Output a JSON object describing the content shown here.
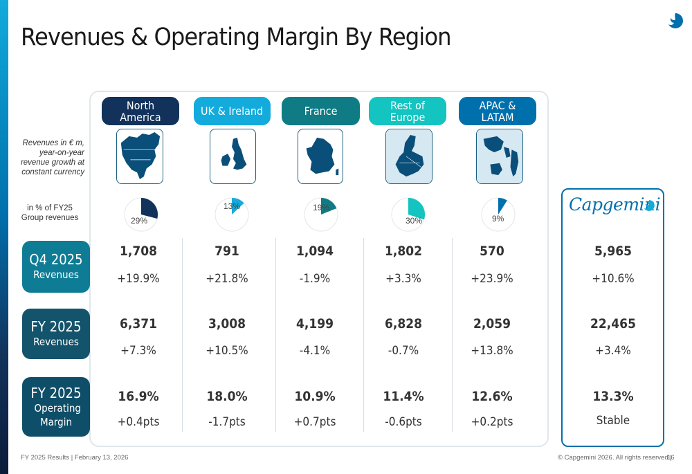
{
  "slide": {
    "title": "Revenues & Operating Margin By Region",
    "footer_left": "FY 2025 Results | February 13, 2026",
    "footer_right": "© Capgemini 2026. All rights reserved |",
    "page_number": "16"
  },
  "side_labels": {
    "revenue_note": "Revenues in € m, year-on-year revenue growth at constant currency",
    "share_note": "in % of FY25 Group revenues"
  },
  "rows": [
    {
      "title": "Q4 2025",
      "subtitle": "Revenues"
    },
    {
      "title": "FY 2025",
      "subtitle": "Revenues"
    },
    {
      "title": "FY 2025",
      "subtitle": "Operating Margin"
    }
  ],
  "regions": [
    {
      "name": "North America",
      "color": "#12325b",
      "share_label": "29%",
      "share": 29,
      "q4_rev": "1,708",
      "q4_growth": "+19.9%",
      "fy_rev": "6,371",
      "fy_growth": "+7.3%",
      "fy_margin": "16.9%",
      "fy_margin_chg": "+0.4pts"
    },
    {
      "name": "UK & Ireland",
      "color": "#12abdb",
      "share_label": "13%",
      "share": 13,
      "q4_rev": "791",
      "q4_growth": "+21.8%",
      "fy_rev": "3,008",
      "fy_growth": "+10.5%",
      "fy_margin": "18.0%",
      "fy_margin_chg": "-1.7pts"
    },
    {
      "name": "France",
      "color": "#0f7c85",
      "share_label": "19%",
      "share": 19,
      "q4_rev": "1,094",
      "q4_growth": "-1.9%",
      "fy_rev": "4,199",
      "fy_growth": "-4.1%",
      "fy_margin": "10.9%",
      "fy_margin_chg": "+0.7pts"
    },
    {
      "name": "Rest of Europe",
      "color": "#13c4c0",
      "share_label": "30%",
      "share": 30,
      "q4_rev": "1,802",
      "q4_growth": "+3.3%",
      "fy_rev": "6,828",
      "fy_growth": "-0.7%",
      "fy_margin": "11.4%",
      "fy_margin_chg": "-0.6pts"
    },
    {
      "name": "APAC & LATAM",
      "color": "#0070ad",
      "share_label": "9%",
      "share": 9,
      "q4_rev": "570",
      "q4_growth": "+23.9%",
      "fy_rev": "2,059",
      "fy_growth": "+13.8%",
      "fy_margin": "12.6%",
      "fy_margin_chg": "+0.2pts"
    }
  ],
  "group": {
    "brand": "Capgemini",
    "q4_rev": "5,965",
    "q4_growth": "+10.6%",
    "fy_rev": "22,465",
    "fy_growth": "+3.4%",
    "fy_margin": "13.3%",
    "fy_margin_chg": "Stable"
  },
  "colors": {
    "row_q4": "#0f7c95",
    "row_fy": "#14536c",
    "row_margin": "#0f4e68",
    "map_fill": "#0a4f7a",
    "pie_outline": "#e3e7ea"
  }
}
